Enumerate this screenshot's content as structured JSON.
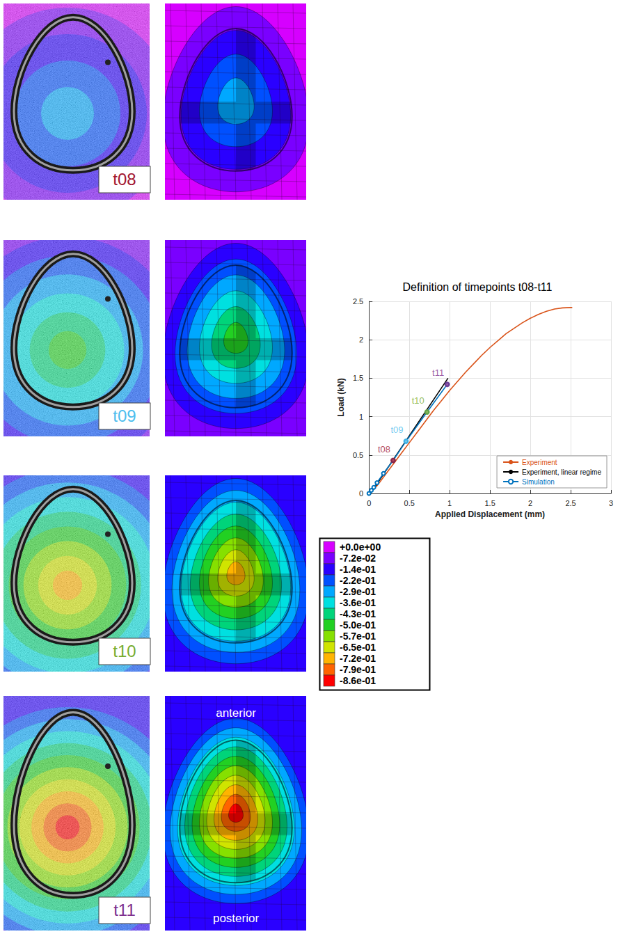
{
  "panels": [
    {
      "label": "t08",
      "color": "#a2142f",
      "edge": 0,
      "peak": -0.29
    },
    {
      "label": "t09",
      "color": "#4dbeee",
      "edge": -0.072,
      "peak": -0.5
    },
    {
      "label": "t10",
      "color": "#77ac30",
      "edge": -0.14,
      "peak": -0.72
    },
    {
      "label": "t11",
      "color": "#7e2f8e",
      "edge": -0.14,
      "peak": -0.86,
      "top_label": "anterior",
      "bottom_label": "posterior"
    }
  ],
  "colorbar": {
    "ticks": [
      {
        "value": 0,
        "label": "+0.0e+00"
      },
      {
        "value": -0.072,
        "label": "-7.2e-02"
      },
      {
        "value": -0.14,
        "label": "-1.4e-01"
      },
      {
        "value": -0.22,
        "label": "-2.2e-01"
      },
      {
        "value": -0.29,
        "label": "-2.9e-01"
      },
      {
        "value": -0.36,
        "label": "-3.6e-01"
      },
      {
        "value": -0.43,
        "label": "-4.3e-01"
      },
      {
        "value": -0.5,
        "label": "-5.0e-01"
      },
      {
        "value": -0.57,
        "label": "-5.7e-01"
      },
      {
        "value": -0.65,
        "label": "-6.5e-01"
      },
      {
        "value": -0.72,
        "label": "-7.2e-01"
      },
      {
        "value": -0.79,
        "label": "-7.9e-01"
      },
      {
        "value": -0.86,
        "label": "-8.6e-01"
      }
    ],
    "colors": [
      "#d600ff",
      "#7a00ff",
      "#2a00ff",
      "#0050ff",
      "#00a8ff",
      "#00e0e0",
      "#00d47a",
      "#22d022",
      "#86e000",
      "#d0e400",
      "#ffb400",
      "#ff6400",
      "#ff0000"
    ]
  },
  "chart_data": {
    "type": "line",
    "title": "Definition of timepoints t08-t11",
    "x_label": "Applied Displacement (mm)",
    "y_label": "Load (kN)",
    "xlim": [
      0,
      3
    ],
    "xticks": [
      0,
      0.5,
      1,
      1.5,
      2,
      2.5,
      3
    ],
    "ylim": [
      0,
      2.5
    ],
    "yticks": [
      0,
      0.5,
      1,
      1.5,
      2,
      2.5
    ],
    "grid": true,
    "legend": "lower right",
    "series": [
      {
        "name": "Experiment",
        "color": "#d95319",
        "marker": "none",
        "line_style": "solid",
        "x": [
          0,
          0.1,
          0.2,
          0.3,
          0.4,
          0.5,
          0.6,
          0.7,
          0.8,
          0.9,
          1.0,
          1.1,
          1.2,
          1.3,
          1.4,
          1.5,
          1.6,
          1.7,
          1.8,
          1.9,
          2.0,
          2.1,
          2.2,
          2.3,
          2.4,
          2.5,
          2.52
        ],
        "values": [
          0,
          0.1,
          0.24,
          0.38,
          0.52,
          0.66,
          0.8,
          0.94,
          1.08,
          1.21,
          1.34,
          1.46,
          1.58,
          1.69,
          1.8,
          1.9,
          1.99,
          2.08,
          2.15,
          2.22,
          2.28,
          2.33,
          2.37,
          2.4,
          2.415,
          2.42,
          2.42
        ]
      },
      {
        "name": "Experiment, linear regime",
        "color": "#000000",
        "marker": "none",
        "line_style": "solid",
        "x": [
          0.02,
          0.98
        ],
        "values": [
          0,
          1.5
        ]
      },
      {
        "name": "Simulation",
        "color": "#0072bd",
        "marker": "circle",
        "line_style": "solid",
        "x": [
          0,
          0.03,
          0.06,
          0.1,
          0.18,
          0.3,
          0.46,
          0.72,
          0.97
        ],
        "values": [
          0,
          0.04,
          0.08,
          0.14,
          0.26,
          0.43,
          0.68,
          1.06,
          1.42
        ]
      }
    ],
    "annotations": [
      {
        "text": "t08",
        "x": 0.3,
        "y": 0.43,
        "color": "#a2142f"
      },
      {
        "text": "t09",
        "x": 0.46,
        "y": 0.68,
        "color": "#4dbeee"
      },
      {
        "text": "t10",
        "x": 0.72,
        "y": 1.06,
        "color": "#77ac30"
      },
      {
        "text": "t11",
        "x": 0.97,
        "y": 1.42,
        "color": "#7e2f8e"
      }
    ]
  }
}
